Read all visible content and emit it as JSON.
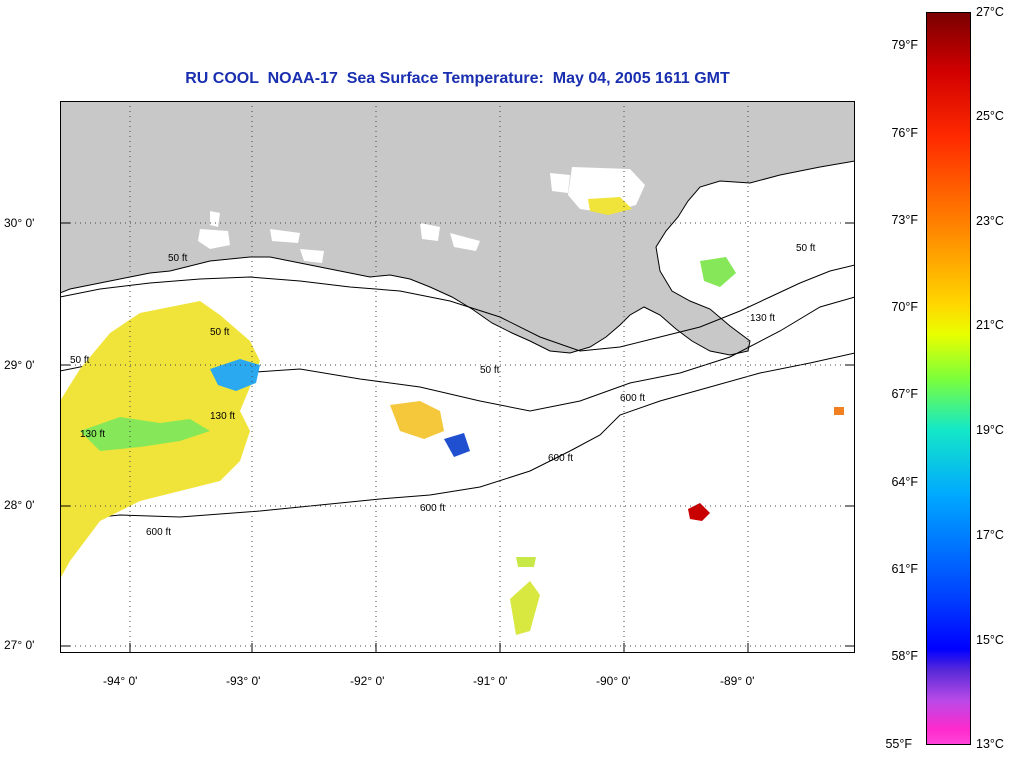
{
  "title": "RU COOL  NOAA-17  Sea Surface Temperature:  May 04, 2005 1611 GMT",
  "lon_labels": [
    "-94° 0'",
    "-93° 0'",
    "-92° 0'",
    "-91° 0'",
    "-90° 0'",
    "-89° 0'"
  ],
  "lat_labels": [
    "30° 0'",
    "29° 0'",
    "28° 0'",
    "27° 0'"
  ],
  "contour_labels": [
    "50 ft",
    "50 ft",
    "50 ft",
    "50 ft",
    "130 ft",
    "130 ft",
    "600 ft",
    "600 ft",
    "600 ft",
    "600 ft",
    "130 ft",
    "50 ft"
  ],
  "colorbar": {
    "fahrenheit": [
      "79°F",
      "76°F",
      "73°F",
      "70°F",
      "67°F",
      "64°F",
      "61°F",
      "58°F",
      "55°F"
    ],
    "celsius": [
      "27°C",
      "25°C",
      "23°C",
      "21°C",
      "19°C",
      "17°C",
      "15°C",
      "13°C"
    ]
  },
  "colors": {
    "land": "#c8c8c8",
    "title": "#1a2fb0",
    "warm_patch": "#f2e02a",
    "hot_spot": "#c80000"
  }
}
